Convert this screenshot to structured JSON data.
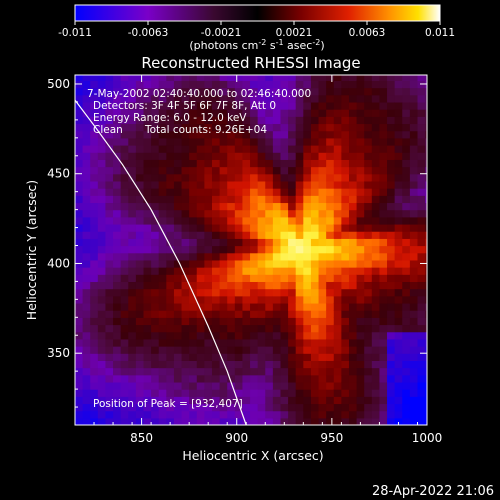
{
  "chart_data": {
    "type": "heatmap",
    "title": "Reconstructed RHESSI Image",
    "colorbar": {
      "ticks": [
        "-0.011",
        "-0.0063",
        "-0.0021",
        "0.0021",
        "0.0063",
        "0.011"
      ],
      "unit_text": "(photons cm",
      "unit_exp1": "-2",
      "unit_mid": " s",
      "unit_exp2": "-1",
      "unit_end": " asec",
      "unit_exp3": "-2",
      "unit_close": ")",
      "range": [
        -0.011,
        0.011
      ],
      "colors": [
        "#0000ff",
        "#7a00c8",
        "#5a0a3a",
        "#000000",
        "#6a0000",
        "#e01000",
        "#ff7a00",
        "#ffd400",
        "#ffff90",
        "#ffffff"
      ]
    },
    "xlabel": "Heliocentric X (arcsec)",
    "ylabel": "Heliocentric Y (arcsec)",
    "xlim": [
      815,
      1000
    ],
    "ylim": [
      310,
      505
    ],
    "xticks": [
      850,
      900,
      950,
      1000
    ],
    "yticks": [
      350,
      400,
      450,
      500
    ],
    "annotations": {
      "time": "7-May-2002 02:40:40.000 to 02:46:40.000",
      "detectors": "Detectors: 3F 4F 5F 6F 7F 8F, Att 0",
      "energy": "Energy Range: 6.0 - 12.0 keV",
      "clean_label": "Clean",
      "counts": "Total counts: 9.26E+04",
      "peak": "Position of Peak = [932,407]"
    },
    "peak": [
      932,
      407
    ],
    "limb_curve": [
      [
        815,
        491
      ],
      [
        825,
        477
      ],
      [
        840,
        455
      ],
      [
        855,
        430
      ],
      [
        870,
        400
      ],
      [
        885,
        365
      ],
      [
        895,
        340
      ],
      [
        905,
        310
      ]
    ]
  },
  "footer": {
    "timestamp": "28-Apr-2022 21:06"
  }
}
